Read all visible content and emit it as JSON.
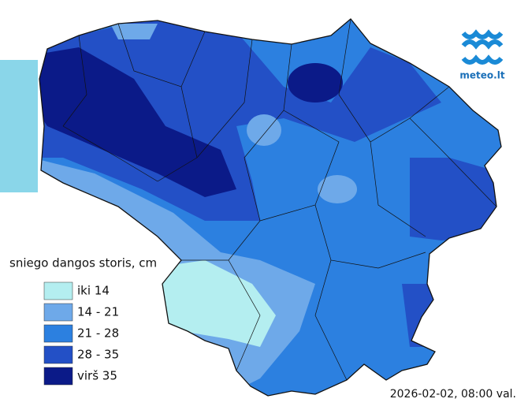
{
  "logo": {
    "text": "meteo.lt"
  },
  "legend": {
    "title": "sniego dangos storis, cm",
    "items": [
      {
        "label": "iki 14",
        "color": "#b4eef0"
      },
      {
        "label": "14 - 21",
        "color": "#6ea9e9"
      },
      {
        "label": "21 - 28",
        "color": "#2c80e0"
      },
      {
        "label": "28 - 35",
        "color": "#2350c6"
      },
      {
        "label": "virš 35",
        "color": "#0b1a88"
      }
    ]
  },
  "timestamp": "2026-02-02, 08:00 val."
}
